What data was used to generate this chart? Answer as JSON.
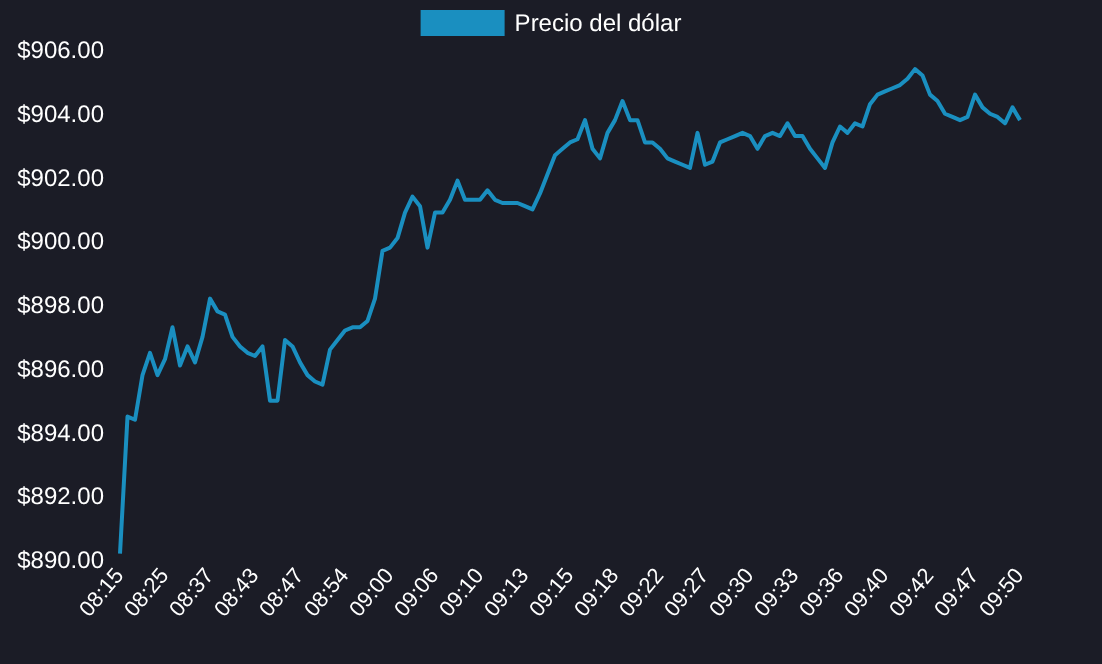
{
  "chart_data": {
    "type": "line",
    "categories": [
      "08:15",
      null,
      null,
      null,
      null,
      null,
      "08:25",
      null,
      null,
      null,
      null,
      null,
      "08:37",
      null,
      null,
      null,
      null,
      null,
      "08:43",
      null,
      null,
      null,
      null,
      null,
      "08:47",
      null,
      null,
      null,
      null,
      null,
      "08:54",
      null,
      null,
      null,
      null,
      null,
      "09:00",
      null,
      null,
      null,
      null,
      null,
      "09:06",
      null,
      null,
      null,
      null,
      null,
      "09:10",
      null,
      null,
      null,
      null,
      null,
      "09:13",
      null,
      null,
      null,
      null,
      null,
      "09:15",
      null,
      null,
      null,
      null,
      null,
      "09:18",
      null,
      null,
      null,
      null,
      null,
      "09:22",
      null,
      null,
      null,
      null,
      null,
      "09:27",
      null,
      null,
      null,
      null,
      null,
      "09:30",
      null,
      null,
      null,
      null,
      null,
      "09:33",
      null,
      null,
      null,
      null,
      null,
      "09:36",
      null,
      null,
      null,
      null,
      null,
      "09:40",
      null,
      null,
      null,
      null,
      null,
      "09:42",
      null,
      null,
      null,
      null,
      null,
      "09:47",
      null,
      null,
      null,
      null,
      null,
      "09:50"
    ],
    "series": [
      {
        "name": "Precio del dólar",
        "color": "#1a8fc0",
        "values": [
          890.2,
          894.5,
          894.4,
          895.8,
          896.5,
          895.8,
          896.3,
          897.3,
          896.1,
          896.7,
          896.2,
          897.0,
          898.2,
          897.8,
          897.7,
          897.0,
          896.7,
          896.5,
          896.4,
          896.7,
          895.0,
          895.0,
          896.9,
          896.7,
          896.2,
          895.8,
          895.6,
          895.5,
          896.6,
          896.9,
          897.2,
          897.3,
          897.3,
          897.5,
          898.2,
          899.7,
          899.8,
          900.1,
          900.9,
          901.4,
          901.1,
          899.8,
          900.9,
          900.9,
          901.3,
          901.9,
          901.3,
          901.3,
          901.3,
          901.6,
          901.3,
          901.2,
          901.2,
          901.2,
          901.1,
          901.0,
          901.5,
          902.1,
          902.7,
          902.9,
          903.1,
          903.2,
          903.8,
          902.9,
          902.6,
          903.4,
          903.8,
          904.4,
          903.8,
          903.8,
          903.1,
          903.1,
          902.9,
          902.6,
          902.5,
          902.4,
          902.3,
          903.4,
          902.4,
          902.5,
          903.1,
          903.2,
          903.3,
          903.4,
          903.3,
          902.9,
          903.3,
          903.4,
          903.3,
          903.7,
          903.3,
          903.3,
          902.9,
          902.6,
          902.3,
          903.1,
          903.6,
          903.4,
          903.7,
          903.6,
          904.3,
          904.6,
          904.7,
          904.8,
          904.9,
          905.1,
          905.4,
          905.2,
          904.6,
          904.4,
          904.0,
          903.9,
          903.8,
          903.9,
          904.6,
          904.2,
          904.0,
          903.9,
          903.7,
          904.2,
          903.8
        ]
      }
    ],
    "ylim": [
      890,
      906
    ],
    "yticks": [
      {
        "value": 890,
        "label": "$890.00"
      },
      {
        "value": 892,
        "label": "$892.00"
      },
      {
        "value": 894,
        "label": "$894.00"
      },
      {
        "value": 896,
        "label": "$896.00"
      },
      {
        "value": 898,
        "label": "$898.00"
      },
      {
        "value": 900,
        "label": "$900.00"
      },
      {
        "value": 902,
        "label": "$902.00"
      },
      {
        "value": 904,
        "label": "$904.00"
      },
      {
        "value": 906,
        "label": "$906.00"
      }
    ],
    "legend": "top",
    "marker": "none",
    "line_style": "solid",
    "grid": false
  }
}
